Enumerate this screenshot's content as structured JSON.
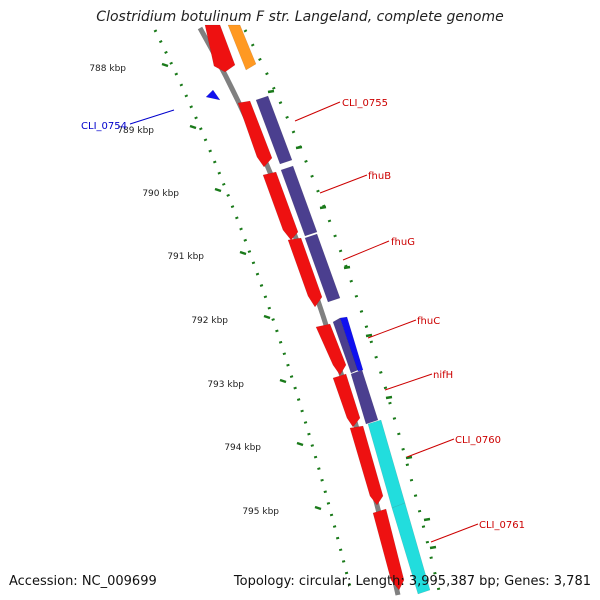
{
  "title": "Clostridium botulinum F str. Langeland, complete genome",
  "footer": {
    "accession": "Accession: NC_009699",
    "summary": "Topology: circular; Length: 3,995,387 bp; Genes: 3,781"
  },
  "colors": {
    "backbone": "#808080",
    "ticks": "#1a7a1a",
    "cds": "#ee1111",
    "label_red": "#cc0000",
    "label_blue": "#0000cc",
    "navy": "#4b3f8f",
    "blue": "#1010ee",
    "cyan": "#22dddd",
    "orange": "#ff9922"
  },
  "kbp_labels": [
    "788 kbp",
    "789 kbp",
    "790 kbp",
    "791 kbp",
    "792 kbp",
    "793 kbp",
    "794 kbp",
    "795 kbp"
  ],
  "gene_labels": [
    "CLI_0754",
    "CLI_0755",
    "fhuB",
    "fhuG",
    "fhuC",
    "nifH",
    "CLI_0760",
    "CLI_0761"
  ]
}
